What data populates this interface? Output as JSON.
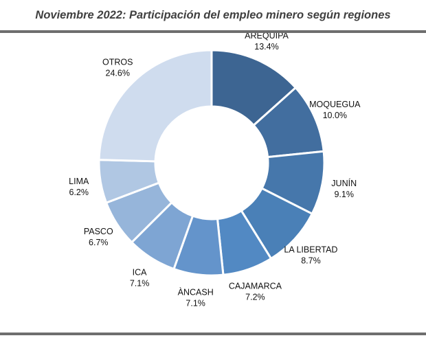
{
  "title": "Noviembre 2022: Participación del empleo minero según regiones",
  "chart_data": {
    "type": "pie",
    "subtype": "donut",
    "title": "Noviembre 2022: Participación del empleo minero según regiones",
    "categories": [
      "AREQUIPA",
      "MOQUEGUA",
      "JUNÍN",
      "LA LIBERTAD",
      "CAJAMARCA",
      "ÀNCASH",
      "ICA",
      "PASCO",
      "LIMA",
      "OTROS"
    ],
    "values": [
      13.4,
      10.0,
      9.1,
      8.7,
      7.2,
      7.1,
      7.1,
      6.7,
      6.2,
      24.6
    ],
    "value_labels": [
      "13.4%",
      "10.0%",
      "9.1%",
      "8.7%",
      "7.2%",
      "7.1%",
      "7.1%",
      "6.7%",
      "6.2%",
      "24.6%"
    ],
    "colors": [
      "#3d6592",
      "#426e9f",
      "#4677ab",
      "#4a80b7",
      "#5289c3",
      "#6494cb",
      "#7ea5d3",
      "#96b5da",
      "#b0c7e3",
      "#cfdcee"
    ]
  }
}
